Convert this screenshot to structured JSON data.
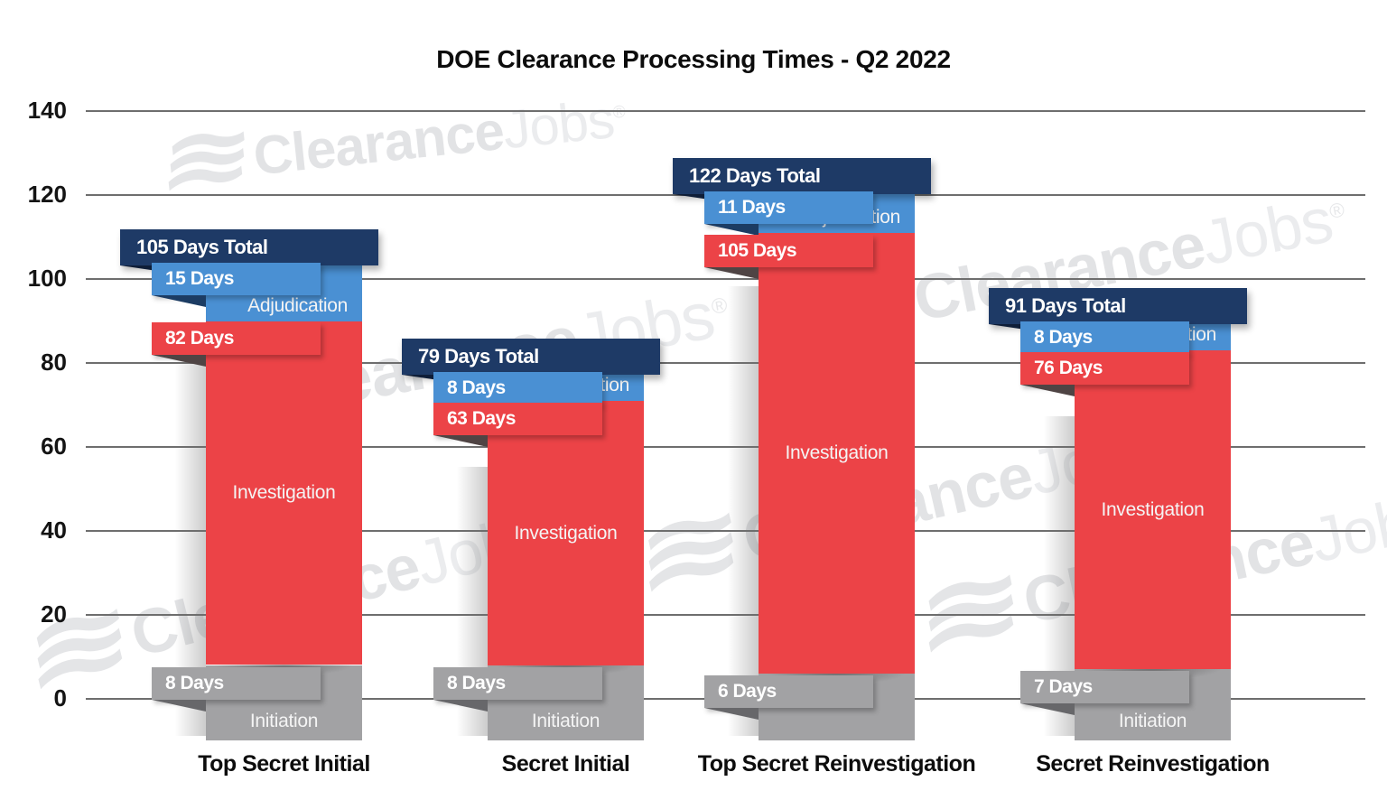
{
  "title": "DOE Clearance Processing Times - Q2 2022",
  "brand": {
    "bold": "Clearance",
    "light": "Jobs",
    "registered": "®"
  },
  "colors": {
    "initiation": "#a2a2a4",
    "investigation": "#ec4347",
    "adjudication": "#4a90d3",
    "total_banner": "#1e3a66",
    "fold_total": "#0f1e38",
    "fold_adjudication": "#1c3c63",
    "fold_investigation": "#4f4444",
    "fold_initiation": "#67676a",
    "grid": "#6e6e6e",
    "axis_text": "#141414",
    "watermark": "#e4e5e7"
  },
  "chart_data": {
    "type": "bar",
    "stacked": true,
    "title": "DOE Clearance Processing Times - Q2 2022",
    "unit": "days",
    "ylim": [
      0,
      140
    ],
    "yticks": [
      0,
      20,
      40,
      60,
      80,
      100,
      120,
      140
    ],
    "grid": true,
    "legend": "none",
    "xlabel": "",
    "ylabel": "",
    "categories": [
      "Top Secret Initial",
      "Secret Initial",
      "Top Secret Reinvestigation",
      "Secret Reinvestigation"
    ],
    "series": [
      {
        "name": "Initiation",
        "values": [
          8,
          8,
          6,
          7
        ]
      },
      {
        "name": "Investigation",
        "values": [
          82,
          63,
          105,
          76
        ]
      },
      {
        "name": "Adjudication",
        "values": [
          15,
          8,
          11,
          8
        ]
      }
    ],
    "totals": [
      105,
      79,
      122,
      91
    ],
    "bars": [
      {
        "category": "Top Secret Initial",
        "total_label": "105 Days Total",
        "segments": [
          {
            "name": "Initiation",
            "days": 8,
            "days_label": "8 Days",
            "name_visible": true
          },
          {
            "name": "Investigation",
            "days": 82,
            "days_label": "82 Days",
            "name_visible": true
          },
          {
            "name": "Adjudication",
            "days": 15,
            "days_label": "15 Days",
            "name_visible": true
          }
        ]
      },
      {
        "category": "Secret Initial",
        "total_label": "79 Days Total",
        "segments": [
          {
            "name": "Initiation",
            "days": 8,
            "days_label": "8 Days",
            "name_visible": true
          },
          {
            "name": "Investigation",
            "days": 63,
            "days_label": "63 Days",
            "name_visible": true
          },
          {
            "name": "Adjudication",
            "days": 8,
            "days_label": "8 Days",
            "name_visible": true
          }
        ]
      },
      {
        "category": "Top Secret Reinvestigation",
        "total_label": "122 Days Total",
        "segments": [
          {
            "name": "Initiation",
            "days": 6,
            "days_label": "6 Days",
            "name_visible": false
          },
          {
            "name": "Investigation",
            "days": 105,
            "days_label": "105 Days",
            "name_visible": true
          },
          {
            "name": "Adjudication",
            "days": 11,
            "days_label": "11 Days",
            "name_visible": true
          }
        ]
      },
      {
        "category": "Secret Reinvestigation",
        "total_label": "91 Days Total",
        "segments": [
          {
            "name": "Initiation",
            "days": 7,
            "days_label": "7 Days",
            "name_visible": true
          },
          {
            "name": "Investigation",
            "days": 76,
            "days_label": "76 Days",
            "name_visible": true
          },
          {
            "name": "Adjudication",
            "days": 8,
            "days_label": "8 Days",
            "name_visible": true
          }
        ]
      }
    ]
  }
}
